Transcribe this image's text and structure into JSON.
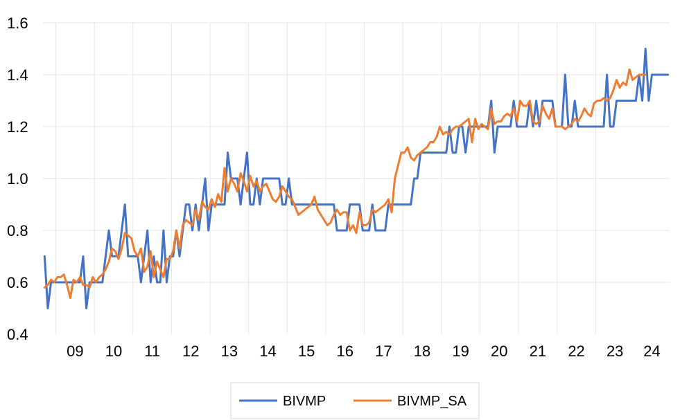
{
  "chart_data": {
    "type": "line",
    "title": "",
    "xlabel": "",
    "ylabel": "",
    "ylim": [
      0.4,
      1.6
    ],
    "yticks": [
      "0.4",
      "0.6",
      "0.8",
      "1.0",
      "1.2",
      "1.4",
      "1.6"
    ],
    "xtick_labels": [
      "09",
      "10",
      "11",
      "12",
      "13",
      "14",
      "15",
      "16",
      "17",
      "18",
      "19",
      "20",
      "21",
      "22",
      "23",
      "24"
    ],
    "x_start": "2008-09",
    "grid": true,
    "legend_position": "bottom",
    "colors": {
      "BIVMP": "#4472C4",
      "BIVMP_SA": "#ED7D31"
    },
    "series": [
      {
        "name": "BIVMP",
        "values": [
          0.7,
          0.5,
          0.6,
          0.6,
          0.6,
          0.6,
          0.6,
          0.6,
          0.6,
          0.6,
          0.6,
          0.6,
          0.7,
          0.5,
          0.6,
          0.6,
          0.6,
          0.6,
          0.6,
          0.7,
          0.8,
          0.7,
          0.7,
          0.7,
          0.8,
          0.9,
          0.7,
          0.7,
          0.7,
          0.7,
          0.6,
          0.7,
          0.8,
          0.6,
          0.7,
          0.6,
          0.6,
          0.8,
          0.6,
          0.7,
          0.7,
          0.8,
          0.7,
          0.8,
          0.9,
          0.9,
          0.8,
          0.9,
          0.8,
          0.9,
          1.0,
          0.8,
          0.9,
          0.9,
          0.9,
          0.9,
          0.9,
          1.1,
          1.0,
          1.0,
          1.0,
          0.9,
          1.0,
          1.1,
          0.9,
          0.9,
          1.0,
          0.9,
          1.0,
          1.0,
          1.0,
          1.0,
          1.0,
          1.0,
          0.9,
          0.9,
          1.0,
          0.9,
          0.9,
          0.9,
          0.9,
          0.9,
          0.9,
          0.9,
          0.9,
          0.9,
          0.9,
          0.9,
          0.9,
          0.9,
          0.9,
          0.8,
          0.8,
          0.8,
          0.8,
          0.9,
          0.9,
          0.9,
          0.9,
          0.8,
          0.8,
          0.8,
          0.9,
          0.8,
          0.8,
          0.8,
          0.8,
          0.9,
          0.9,
          0.9,
          0.9,
          0.9,
          0.9,
          0.9,
          0.9,
          1.0,
          1.0,
          1.1,
          1.1,
          1.1,
          1.1,
          1.1,
          1.1,
          1.1,
          1.1,
          1.1,
          1.2,
          1.1,
          1.1,
          1.2,
          1.2,
          1.1,
          1.2,
          1.2,
          1.2,
          1.2,
          1.2,
          1.2,
          1.2,
          1.3,
          1.1,
          1.2,
          1.2,
          1.2,
          1.2,
          1.2,
          1.3,
          1.2,
          1.2,
          1.2,
          1.2,
          1.3,
          1.2,
          1.3,
          1.2,
          1.3,
          1.3,
          1.3,
          1.3,
          1.2,
          1.2,
          1.2,
          1.4,
          1.2,
          1.2,
          1.3,
          1.2,
          1.2,
          1.2,
          1.2,
          1.2,
          1.2,
          1.2,
          1.2,
          1.2,
          1.4,
          1.2,
          1.2,
          1.3,
          1.3,
          1.3,
          1.3,
          1.3,
          1.3,
          1.3,
          1.4,
          1.3,
          1.5,
          1.3,
          1.4,
          1.4,
          1.4,
          1.4,
          1.4,
          1.4
        ]
      },
      {
        "name": "BIVMP_SA",
        "values": [
          0.58,
          0.59,
          0.61,
          0.6,
          0.62,
          0.62,
          0.63,
          0.59,
          0.54,
          0.61,
          0.6,
          0.62,
          0.59,
          0.59,
          0.58,
          0.62,
          0.6,
          0.62,
          0.63,
          0.65,
          0.68,
          0.73,
          0.72,
          0.69,
          0.73,
          0.79,
          0.78,
          0.77,
          0.72,
          0.7,
          0.73,
          0.64,
          0.66,
          0.72,
          0.62,
          0.68,
          0.65,
          0.62,
          0.69,
          0.69,
          0.72,
          0.8,
          0.73,
          0.82,
          0.84,
          0.83,
          0.82,
          0.88,
          0.84,
          0.91,
          0.89,
          0.88,
          0.92,
          0.89,
          0.94,
          0.91,
          1.04,
          0.95,
          1.0,
          0.98,
          0.95,
          1.02,
          0.99,
          0.95,
          1.01,
          0.97,
          0.99,
          0.95,
          0.97,
          0.98,
          0.95,
          0.92,
          0.91,
          0.93,
          0.97,
          0.95,
          0.93,
          0.92,
          0.89,
          0.86,
          0.87,
          0.88,
          0.89,
          0.9,
          0.93,
          0.88,
          0.86,
          0.84,
          0.82,
          0.83,
          0.86,
          0.88,
          0.86,
          0.87,
          0.87,
          0.8,
          0.82,
          0.79,
          0.87,
          0.82,
          0.82,
          0.83,
          0.88,
          0.87,
          0.88,
          0.89,
          0.9,
          0.92,
          0.87,
          1.0,
          1.05,
          1.1,
          1.1,
          1.12,
          1.08,
          1.07,
          1.09,
          1.1,
          1.11,
          1.12,
          1.14,
          1.14,
          1.16,
          1.2,
          1.17,
          1.18,
          1.17,
          1.19,
          1.2,
          1.2,
          1.21,
          1.22,
          1.23,
          1.14,
          1.23,
          1.19,
          1.21,
          1.2,
          1.19,
          1.27,
          1.21,
          1.22,
          1.22,
          1.24,
          1.25,
          1.24,
          1.27,
          1.22,
          1.3,
          1.28,
          1.28,
          1.3,
          1.22,
          1.21,
          1.22,
          1.28,
          1.25,
          1.23,
          1.27,
          1.2,
          1.2,
          1.2,
          1.19,
          1.2,
          1.21,
          1.23,
          1.22,
          1.24,
          1.27,
          1.25,
          1.24,
          1.29,
          1.3,
          1.3,
          1.31,
          1.3,
          1.31,
          1.34,
          1.38,
          1.35,
          1.37,
          1.36,
          1.42,
          1.38,
          1.39,
          1.4,
          1.4,
          1.4
        ]
      }
    ]
  }
}
